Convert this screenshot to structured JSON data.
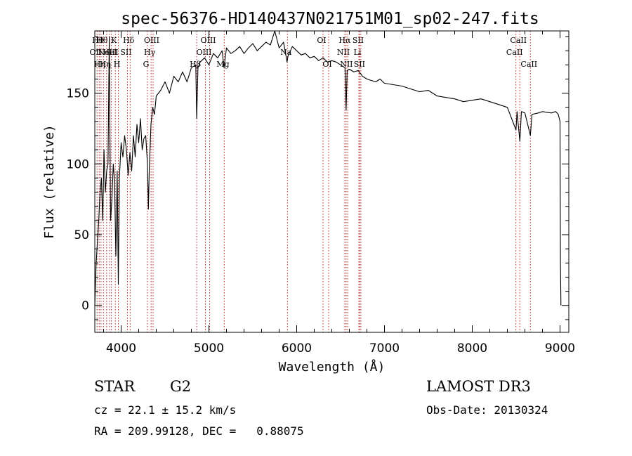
{
  "chart_data": {
    "type": "line",
    "title": "spec-56376-HD140437N021751M01_sp02-247.fits",
    "xlabel": "Wavelength (Å)",
    "ylabel": "Flux (relative)",
    "xlim": [
      3700,
      9100
    ],
    "ylim": [
      -19,
      194
    ],
    "x_ticks": [
      4000,
      5000,
      6000,
      7000,
      8000,
      9000
    ],
    "x_tick_labels": [
      "4000",
      "5000",
      "6000",
      "7000",
      "8000",
      "9000"
    ],
    "y_ticks": [
      0,
      50,
      100,
      150
    ],
    "y_tick_labels": [
      "0",
      "50",
      "100",
      "150"
    ],
    "line_color": "#000000",
    "marker_color": "#b22222",
    "series": [
      {
        "name": "flux",
        "points": [
          [
            3700,
            0
          ],
          [
            3715,
            30
          ],
          [
            3730,
            45
          ],
          [
            3745,
            60
          ],
          [
            3760,
            80
          ],
          [
            3775,
            90
          ],
          [
            3790,
            60
          ],
          [
            3805,
            110
          ],
          [
            3820,
            80
          ],
          [
            3835,
            95
          ],
          [
            3850,
            100
          ],
          [
            3865,
            190
          ],
          [
            3880,
            60
          ],
          [
            3895,
            75
          ],
          [
            3910,
            100
          ],
          [
            3925,
            88
          ],
          [
            3940,
            35
          ],
          [
            3955,
            95
          ],
          [
            3968,
            15
          ],
          [
            3980,
            90
          ],
          [
            4000,
            115
          ],
          [
            4020,
            105
          ],
          [
            4040,
            120
          ],
          [
            4060,
            110
          ],
          [
            4080,
            92
          ],
          [
            4100,
            108
          ],
          [
            4120,
            95
          ],
          [
            4140,
            120
          ],
          [
            4160,
            105
          ],
          [
            4180,
            128
          ],
          [
            4200,
            115
          ],
          [
            4220,
            132
          ],
          [
            4240,
            110
          ],
          [
            4260,
            118
          ],
          [
            4280,
            120
          ],
          [
            4300,
            100
          ],
          [
            4310,
            68
          ],
          [
            4320,
            95
          ],
          [
            4340,
            128
          ],
          [
            4360,
            140
          ],
          [
            4380,
            135
          ],
          [
            4400,
            148
          ],
          [
            4450,
            152
          ],
          [
            4500,
            158
          ],
          [
            4550,
            150
          ],
          [
            4600,
            162
          ],
          [
            4650,
            158
          ],
          [
            4700,
            165
          ],
          [
            4750,
            158
          ],
          [
            4800,
            168
          ],
          [
            4850,
            170
          ],
          [
            4861,
            132
          ],
          [
            4875,
            168
          ],
          [
            4900,
            172
          ],
          [
            4950,
            175
          ],
          [
            5000,
            170
          ],
          [
            5050,
            178
          ],
          [
            5100,
            175
          ],
          [
            5150,
            180
          ],
          [
            5172,
            168
          ],
          [
            5200,
            182
          ],
          [
            5250,
            178
          ],
          [
            5300,
            180
          ],
          [
            5350,
            183
          ],
          [
            5400,
            178
          ],
          [
            5450,
            182
          ],
          [
            5500,
            185
          ],
          [
            5550,
            180
          ],
          [
            5600,
            183
          ],
          [
            5650,
            186
          ],
          [
            5700,
            184
          ],
          [
            5750,
            194
          ],
          [
            5800,
            182
          ],
          [
            5850,
            186
          ],
          [
            5890,
            172
          ],
          [
            5900,
            176
          ],
          [
            5950,
            183
          ],
          [
            6000,
            180
          ],
          [
            6050,
            177
          ],
          [
            6100,
            178
          ],
          [
            6150,
            175
          ],
          [
            6200,
            176
          ],
          [
            6250,
            173
          ],
          [
            6300,
            175
          ],
          [
            6350,
            172
          ],
          [
            6400,
            173
          ],
          [
            6450,
            172
          ],
          [
            6500,
            170
          ],
          [
            6550,
            168
          ],
          [
            6563,
            138
          ],
          [
            6575,
            166
          ],
          [
            6600,
            167
          ],
          [
            6650,
            165
          ],
          [
            6700,
            166
          ],
          [
            6750,
            162
          ],
          [
            6800,
            160
          ],
          [
            6850,
            159
          ],
          [
            6900,
            158
          ],
          [
            6950,
            160
          ],
          [
            7000,
            157
          ],
          [
            7100,
            156
          ],
          [
            7200,
            155
          ],
          [
            7300,
            153
          ],
          [
            7400,
            151
          ],
          [
            7500,
            152
          ],
          [
            7600,
            148
          ],
          [
            7700,
            147
          ],
          [
            7800,
            146
          ],
          [
            7900,
            144
          ],
          [
            8000,
            145
          ],
          [
            8100,
            146
          ],
          [
            8200,
            144
          ],
          [
            8300,
            142
          ],
          [
            8400,
            140
          ],
          [
            8498,
            124
          ],
          [
            8510,
            137
          ],
          [
            8542,
            116
          ],
          [
            8560,
            137
          ],
          [
            8600,
            136
          ],
          [
            8662,
            120
          ],
          [
            8680,
            135
          ],
          [
            8750,
            136
          ],
          [
            8800,
            137
          ],
          [
            8900,
            136
          ],
          [
            8950,
            137
          ],
          [
            8980,
            135
          ],
          [
            9000,
            130
          ],
          [
            9005,
            30
          ],
          [
            9010,
            0
          ]
        ]
      }
    ],
    "line_markers": [
      {
        "x": 3726,
        "labels": [
          "OII"
        ],
        "rows": [
          1
        ]
      },
      {
        "x": 3750,
        "labels": [
          "Hθ"
        ],
        "rows": [
          0
        ]
      },
      {
        "x": 3771,
        "labels": [
          "Hη"
        ],
        "rows": [
          2
        ]
      },
      {
        "x": 3798,
        "labels": [
          "Hθ"
        ],
        "rows": [
          0
        ]
      },
      {
        "x": 3835,
        "labels": [
          "Hη"
        ],
        "rows": [
          2
        ]
      },
      {
        "x": 3868,
        "labels": [
          "NeIII"
        ],
        "rows": [
          1
        ]
      },
      {
        "x": 3889,
        "labels": [
          "HeI"
        ],
        "rows": [
          1
        ]
      },
      {
        "x": 3934,
        "labels": [
          "K"
        ],
        "rows": [
          0
        ]
      },
      {
        "x": 3968,
        "labels": [
          "H"
        ],
        "rows": [
          2
        ]
      },
      {
        "x": 4072,
        "labels": [
          "SII"
        ],
        "rows": [
          1
        ]
      },
      {
        "x": 4102,
        "labels": [
          "Hδ"
        ],
        "rows": [
          0
        ]
      },
      {
        "x": 4300,
        "labels": [
          "G"
        ],
        "rows": [
          2
        ]
      },
      {
        "x": 4341,
        "labels": [
          "Hγ"
        ],
        "rows": [
          1
        ]
      },
      {
        "x": 4364,
        "labels": [
          "OIII"
        ],
        "rows": [
          0
        ]
      },
      {
        "x": 4861,
        "labels": [
          "Hβ"
        ],
        "rows": [
          2
        ]
      },
      {
        "x": 4960,
        "labels": [
          "OIII"
        ],
        "rows": [
          1
        ]
      },
      {
        "x": 5008,
        "labels": [
          "OIII"
        ],
        "rows": [
          0
        ]
      },
      {
        "x": 5175,
        "labels": [
          "Mg"
        ],
        "rows": [
          2
        ]
      },
      {
        "x": 5894,
        "labels": [
          "Na"
        ],
        "rows": [
          1
        ]
      },
      {
        "x": 6300,
        "labels": [
          "OI"
        ],
        "rows": [
          0
        ]
      },
      {
        "x": 6364,
        "labels": [
          "OI"
        ],
        "rows": [
          2
        ]
      },
      {
        "x": 6548,
        "labels": [
          "NII"
        ],
        "rows": [
          1
        ]
      },
      {
        "x": 6563,
        "labels": [
          "Hα"
        ],
        "rows": [
          0
        ]
      },
      {
        "x": 6583,
        "labels": [
          "NII"
        ],
        "rows": [
          2
        ]
      },
      {
        "x": 6708,
        "labels": [
          "Li"
        ],
        "rows": [
          1
        ]
      },
      {
        "x": 6716,
        "labels": [
          "SII"
        ],
        "rows": [
          0
        ]
      },
      {
        "x": 6731,
        "labels": [
          "SII"
        ],
        "rows": [
          2
        ]
      },
      {
        "x": 8498,
        "labels": [
          "CaII"
        ],
        "rows": [
          1
        ]
      },
      {
        "x": 8542,
        "labels": [
          "CaII"
        ],
        "rows": [
          0
        ]
      },
      {
        "x": 8662,
        "labels": [
          "CaII"
        ],
        "rows": [
          2
        ]
      }
    ]
  },
  "info": {
    "object_class": "STAR",
    "subclass": "G2",
    "survey": "LAMOST DR3",
    "redshift_line": "cz = 22.1 ± 15.2 km/s",
    "obs_date": "Obs-Date: 20130324",
    "coords": "RA = 209.99128, DEC =   0.88075"
  }
}
